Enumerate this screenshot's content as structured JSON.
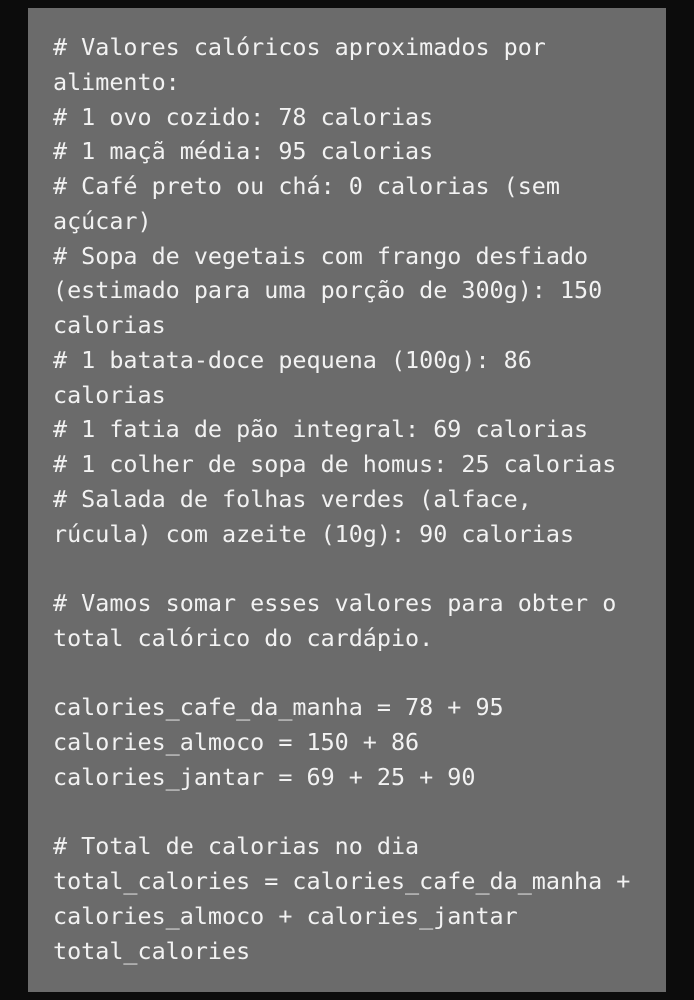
{
  "code_block": {
    "lines": [
      "# Valores calóricos aproximados por",
      "alimento:",
      "# 1 ovo cozido: 78 calorias",
      "# 1 maçã média: 95 calorias",
      "# Café preto ou chá: 0 calorias (sem",
      "açúcar)",
      "# Sopa de vegetais com frango desfiado",
      "(estimado para uma porção de 300g): 150",
      "calorias",
      "# 1 batata-doce pequena (100g): 86",
      "calorias",
      "# 1 fatia de pão integral: 69 calorias",
      "# 1 colher de sopa de homus: 25 calorias",
      "# Salada de folhas verdes (alface,",
      "rúcula) com azeite (10g): 90 calorias",
      "",
      "# Vamos somar esses valores para obter o",
      "total calórico do cardápio.",
      "",
      "calories_cafe_da_manha = 78 + 95",
      "calories_almoco = 150 + 86",
      "calories_jantar = 69 + 25 + 90",
      "",
      "# Total de calorias no dia",
      "total_calories = calories_cafe_da_manha +",
      "calories_almoco + calories_jantar",
      "total_calories"
    ]
  }
}
